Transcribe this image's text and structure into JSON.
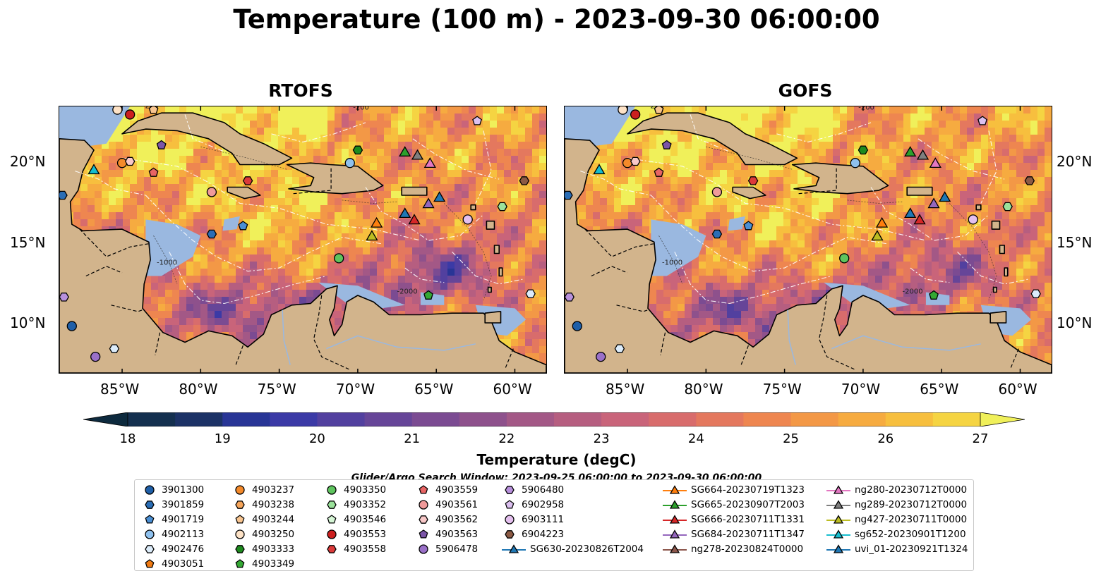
{
  "title": "Temperature (100 m) - 2023-09-30 06:00:00",
  "panels": [
    {
      "title": "RTOFS"
    },
    {
      "title": "GOFS"
    }
  ],
  "axes": {
    "lon_ticks": [
      "85°W",
      "80°W",
      "75°W",
      "70°W",
      "65°W",
      "60°W"
    ],
    "lon_values": [
      -85,
      -80,
      -75,
      -70,
      -65,
      -60
    ],
    "lat_ticks": [
      "20°N",
      "15°N",
      "10°N"
    ],
    "lat_values": [
      20,
      15,
      10
    ],
    "lon_range": [
      -89,
      -58
    ],
    "lat_range": [
      7,
      23.5
    ]
  },
  "contour_labels": [
    "-200",
    "-1000",
    "-2000"
  ],
  "colorbar": {
    "label": "Temperature (degC)",
    "ticks": [
      "18",
      "19",
      "20",
      "21",
      "22",
      "23",
      "24",
      "25",
      "26",
      "27"
    ],
    "range": [
      18,
      27
    ],
    "colors": [
      "#0d2a3e",
      "#14304f",
      "#1c3266",
      "#283596",
      "#3b3aa6",
      "#52409f",
      "#664598",
      "#7b4b92",
      "#8e518c",
      "#a35886",
      "#b65e80",
      "#c9647a",
      "#d86c6c",
      "#e4785e",
      "#ee8650",
      "#f39846",
      "#f6ab40",
      "#f7bf3e",
      "#f5d442",
      "#f0f05a"
    ]
  },
  "search_window": "Glider/Argo Search Window: 2023-09-25 06:00:00 to 2023-09-30 06:00:00",
  "legend": {
    "argo": [
      {
        "id": "3901300",
        "marker": "circle",
        "color": "#1f5fa8"
      },
      {
        "id": "3901859",
        "marker": "hexagon",
        "color": "#2a6db5"
      },
      {
        "id": "4901719",
        "marker": "pentagon",
        "color": "#4a8fd4"
      },
      {
        "id": "4902113",
        "marker": "circle",
        "color": "#8fc1ee"
      },
      {
        "id": "4902476",
        "marker": "hexagon",
        "color": "#dcecfa"
      },
      {
        "id": "4903051",
        "marker": "pentagon",
        "color": "#f07a12"
      },
      {
        "id": "4903237",
        "marker": "circle",
        "color": "#f48a2a"
      },
      {
        "id": "4903238",
        "marker": "hexagon",
        "color": "#f6a55a"
      },
      {
        "id": "4903244",
        "marker": "pentagon",
        "color": "#f8c590"
      },
      {
        "id": "4903250",
        "marker": "circle",
        "color": "#fde2c6"
      },
      {
        "id": "4903333",
        "marker": "hexagon",
        "color": "#1e8a1e"
      },
      {
        "id": "4903349",
        "marker": "pentagon",
        "color": "#34a834"
      },
      {
        "id": "4903350",
        "marker": "circle",
        "color": "#5ec45e"
      },
      {
        "id": "4903352",
        "marker": "hexagon",
        "color": "#9be29b"
      },
      {
        "id": "4903546",
        "marker": "pentagon",
        "color": "#d6f6d6"
      },
      {
        "id": "4903553",
        "marker": "circle",
        "color": "#cc1f1f"
      },
      {
        "id": "4903558",
        "marker": "hexagon",
        "color": "#dc3a3a"
      },
      {
        "id": "4903559",
        "marker": "pentagon",
        "color": "#e86464"
      },
      {
        "id": "4903561",
        "marker": "circle",
        "color": "#f09a9a"
      },
      {
        "id": "4903562",
        "marker": "hexagon",
        "color": "#f8c8c8"
      },
      {
        "id": "4903563",
        "marker": "pentagon",
        "color": "#7b55a8"
      },
      {
        "id": "5906478",
        "marker": "circle",
        "color": "#9a70c8"
      },
      {
        "id": "5906480",
        "marker": "hexagon",
        "color": "#b890dc"
      },
      {
        "id": "6902958",
        "marker": "pentagon",
        "color": "#dcc0f0"
      },
      {
        "id": "6903111",
        "marker": "circle",
        "color": "#e4c0ee"
      },
      {
        "id": "6904223",
        "marker": "hexagon",
        "color": "#8c5a44"
      }
    ],
    "gliders": [
      {
        "id": "SG630-20230826T2004",
        "color": "#1f77b4"
      },
      {
        "id": "SG664-20230719T1323",
        "color": "#ff7f0e"
      },
      {
        "id": "SG665-20230907T2003",
        "color": "#2ca02c"
      },
      {
        "id": "SG666-20230711T1331",
        "color": "#d62728"
      },
      {
        "id": "SG684-20230711T1347",
        "color": "#9467bd"
      },
      {
        "id": "ng278-20230824T0000",
        "color": "#8c564b"
      },
      {
        "id": "ng280-20230712T0000",
        "color": "#e377c2"
      },
      {
        "id": "ng289-20230712T0000",
        "color": "#7f7f7f"
      },
      {
        "id": "ng427-20230711T0000",
        "color": "#bcbd22"
      },
      {
        "id": "sg652-20230901T1200",
        "color": "#17becf"
      },
      {
        "id": "uvi_01-20230921T1324",
        "color": "#1f77b4"
      }
    ]
  },
  "floats_on_map": [
    {
      "id": "3901300",
      "lon": -88.2,
      "lat": 9.9
    },
    {
      "id": "3901859",
      "lon": -88.8,
      "lat": 18.0
    },
    {
      "id": "4901719",
      "lon": -77.3,
      "lat": 16.1
    },
    {
      "id": "4902113",
      "lon": -70.5,
      "lat": 20.0
    },
    {
      "id": "4902476",
      "lon": -85.5,
      "lat": 8.5
    },
    {
      "id": "4903237",
      "lon": -85.0,
      "lat": 20.0
    },
    {
      "id": "4903244",
      "lon": -83.0,
      "lat": 23.3
    },
    {
      "id": "4903250",
      "lon": -85.3,
      "lat": 23.3
    },
    {
      "id": "4903333",
      "lon": -70.0,
      "lat": 20.8
    },
    {
      "id": "4903349",
      "lon": -65.5,
      "lat": 11.8
    },
    {
      "id": "4903350",
      "lon": -71.2,
      "lat": 14.1
    },
    {
      "id": "4903352",
      "lon": -60.8,
      "lat": 17.3
    },
    {
      "id": "4903553",
      "lon": -84.5,
      "lat": 23.0
    },
    {
      "id": "4903558",
      "lon": -77.0,
      "lat": 18.9
    },
    {
      "id": "4903559",
      "lon": -83.0,
      "lat": 19.4
    },
    {
      "id": "4903561",
      "lon": -79.3,
      "lat": 18.2
    },
    {
      "id": "4903562",
      "lon": -84.5,
      "lat": 20.1
    },
    {
      "id": "4903563",
      "lon": -82.5,
      "lat": 21.1
    },
    {
      "id": "3901859b",
      "lon": -79.3,
      "lat": 15.6
    },
    {
      "id": "5906478",
      "lon": -86.7,
      "lat": 8.0
    },
    {
      "id": "5906480",
      "lon": -88.7,
      "lat": 11.7
    },
    {
      "id": "6902958",
      "lon": -62.4,
      "lat": 22.6
    },
    {
      "id": "6903111",
      "lon": -63.0,
      "lat": 16.5
    },
    {
      "id": "6904223",
      "lon": -59.4,
      "lat": 18.9
    },
    {
      "id": "4902476b",
      "lon": -59.0,
      "lat": 11.9
    }
  ],
  "gliders_on_map": [
    {
      "id": "sg652-20230901T1200",
      "lon": -86.8,
      "lat": 19.6
    },
    {
      "id": "SG665-20230907T2003",
      "lon": -67.0,
      "lat": 20.7
    },
    {
      "id": "ng289-20230712T0000",
      "lon": -66.2,
      "lat": 20.5
    },
    {
      "id": "ng280-20230712T0000",
      "lon": -65.4,
      "lat": 20.0
    },
    {
      "id": "SG630-20230826T2004",
      "lon": -67.0,
      "lat": 16.9
    },
    {
      "id": "SG666-20230711T1331",
      "lon": -66.4,
      "lat": 16.5
    },
    {
      "id": "SG664-20230719T1323",
      "lon": -68.8,
      "lat": 16.3
    },
    {
      "id": "ng427-20230711T0000",
      "lon": -69.1,
      "lat": 15.5
    },
    {
      "id": "SG684-20230711T1347",
      "lon": -65.5,
      "lat": 17.5
    },
    {
      "id": "uvi_01-20230921T1324",
      "lon": -64.8,
      "lat": 17.9
    }
  ]
}
